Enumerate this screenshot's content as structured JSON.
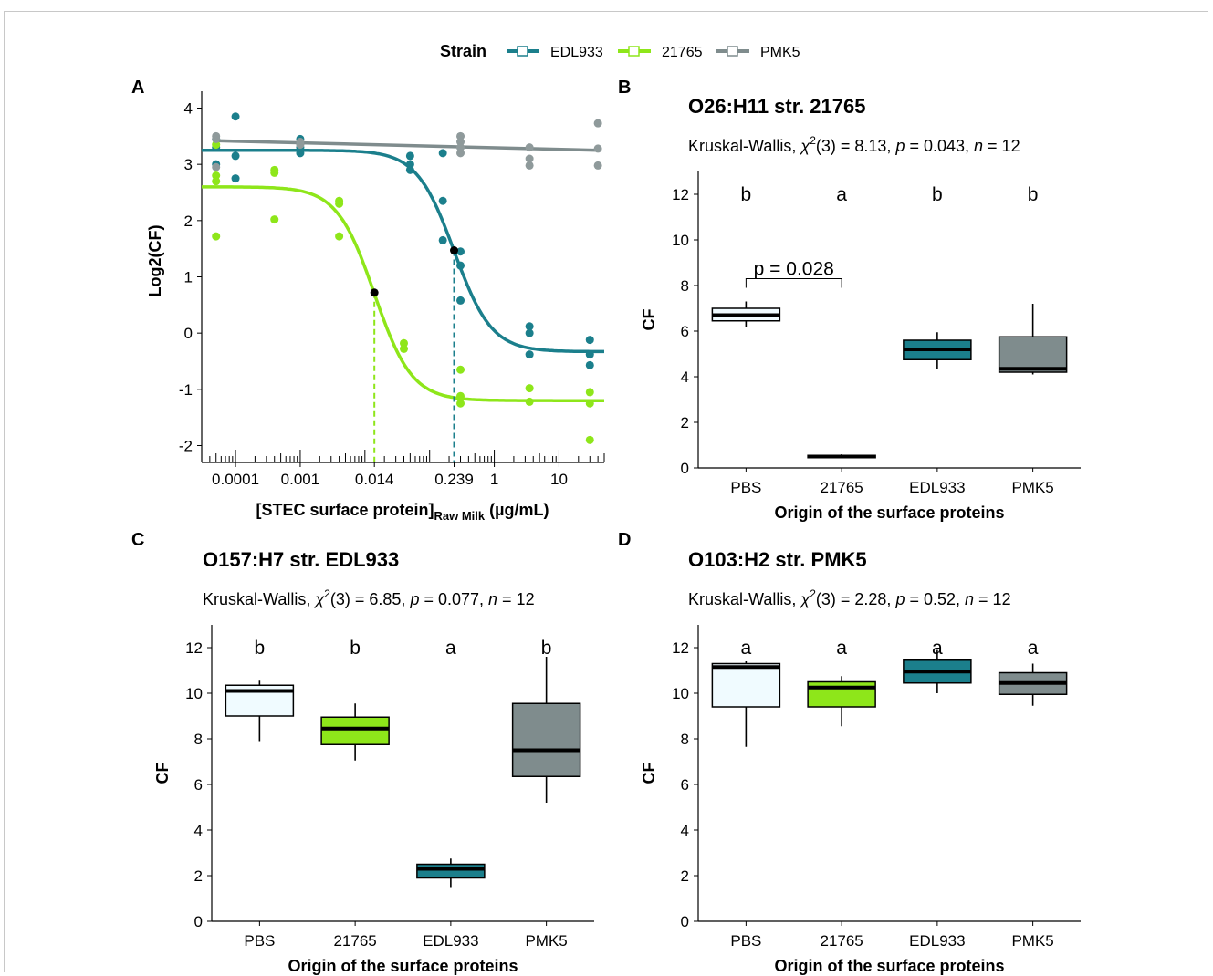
{
  "legend": {
    "title": "Strain",
    "items": [
      {
        "label": "EDL933",
        "color": "#1b7f8c"
      },
      {
        "label": "21765",
        "color": "#8ee61a"
      },
      {
        "label": "PMK5",
        "color": "#7f8c8d"
      }
    ]
  },
  "colors": {
    "PBS_fill": "#f0fbff",
    "21765": "#8ee61a",
    "EDL933": "#1b7f8c",
    "PMK5": "#7f8c8d",
    "PMK5_points": "#8f9a9b",
    "marker": "#000000"
  },
  "panels": {
    "A": {
      "label": "A"
    },
    "B": {
      "label": "B",
      "title": "O26:H11 str. 21765",
      "test": "Kruskal-Wallis,",
      "chi_label": "χ",
      "chi_sup": "2",
      "df": "(3) = 8.13, ",
      "p_label": "p",
      "p_value": " = 0.043, ",
      "n_label": "n",
      "n_value": " = 12",
      "bracket": "p = 0.028"
    },
    "C": {
      "label": "C",
      "title": "O157:H7 str. EDL933",
      "test": "Kruskal-Wallis,",
      "chi_label": "χ",
      "chi_sup": "2",
      "df": "(3) = 6.85, ",
      "p_label": "p",
      "p_value": " = 0.077, ",
      "n_label": "n",
      "n_value": " = 12"
    },
    "D": {
      "label": "D",
      "title": "O103:H2 str. PMK5",
      "test": "Kruskal-Wallis,",
      "chi_label": "χ",
      "chi_sup": "2",
      "df": "(3) = 2.28, ",
      "p_label": "p",
      "p_value": " = 0.52, ",
      "n_label": "n",
      "n_value": " = 12"
    }
  },
  "chart_data": [
    {
      "panel": "A",
      "type": "scatter",
      "xscale": "log",
      "xlabel_main": "[STEC surface protein]",
      "xlabel_sub": "Raw Milk",
      "xlabel_unit": " (µg/mL)",
      "ylabel": "Log2(CF)",
      "xlim": [
        3e-05,
        50
      ],
      "ylim": [
        -2.3,
        4.3
      ],
      "xticks": [
        {
          "v": 0.0001,
          "label": "0.0001"
        },
        {
          "v": 0.001,
          "label": "0.001"
        },
        {
          "v": 0.014,
          "label": "0.014"
        },
        {
          "v": 0.239,
          "label": "0.239"
        },
        {
          "v": 1,
          "label": "1"
        },
        {
          "v": 10,
          "label": "10"
        }
      ],
      "yticks": [
        -2,
        -1,
        0,
        1,
        2,
        3,
        4
      ],
      "series": [
        {
          "name": "EDL933",
          "fit": {
            "top": 3.25,
            "bottom": -0.33,
            "ec50": 0.239,
            "hill": 1.5
          },
          "points": [
            [
              5e-05,
              3.45
            ],
            [
              5e-05,
              3.3
            ],
            [
              5e-05,
              3.0
            ],
            [
              0.0001,
              3.85
            ],
            [
              0.0001,
              3.15
            ],
            [
              0.0001,
              2.75
            ],
            [
              0.001,
              3.45
            ],
            [
              0.001,
              3.2
            ],
            [
              0.001,
              3.3
            ],
            [
              0.05,
              3.15
            ],
            [
              0.05,
              3.0
            ],
            [
              0.05,
              2.9
            ],
            [
              0.16,
              3.2
            ],
            [
              0.16,
              2.35
            ],
            [
              0.16,
              1.65
            ],
            [
              0.3,
              1.45
            ],
            [
              0.3,
              1.2
            ],
            [
              0.3,
              0.58
            ],
            [
              3.5,
              0.12
            ],
            [
              3.5,
              0.0
            ],
            [
              3.5,
              -0.38
            ],
            [
              30,
              -0.12
            ],
            [
              30,
              -0.38
            ],
            [
              30,
              -0.57
            ]
          ],
          "marker": {
            "x": 0.239,
            "y": 1.47
          }
        },
        {
          "name": "21765",
          "fit": {
            "top": 2.6,
            "bottom": -1.2,
            "ec50": 0.014,
            "hill": 1.5
          },
          "points": [
            [
              5e-05,
              3.35
            ],
            [
              5e-05,
              2.8
            ],
            [
              5e-05,
              2.7
            ],
            [
              5e-05,
              1.72
            ],
            [
              0.0004,
              2.9
            ],
            [
              0.0004,
              2.85
            ],
            [
              0.0004,
              2.02
            ],
            [
              0.004,
              2.35
            ],
            [
              0.004,
              2.3
            ],
            [
              0.004,
              1.72
            ],
            [
              0.04,
              -0.18
            ],
            [
              0.04,
              -0.28
            ],
            [
              0.3,
              -0.65
            ],
            [
              0.3,
              -1.12
            ],
            [
              0.3,
              -1.25
            ],
            [
              3.5,
              -0.98
            ],
            [
              3.5,
              -1.22
            ],
            [
              30,
              -1.05
            ],
            [
              30,
              -1.25
            ],
            [
              30,
              -1.9
            ]
          ],
          "marker": {
            "x": 0.014,
            "y": 0.72
          }
        },
        {
          "name": "PMK5",
          "line": [
            [
              5e-05,
              3.42
            ],
            [
              40,
              3.25
            ]
          ],
          "points": [
            [
              5e-05,
              3.5
            ],
            [
              5e-05,
              3.45
            ],
            [
              5e-05,
              2.95
            ],
            [
              0.001,
              3.4
            ],
            [
              0.001,
              3.35
            ],
            [
              0.3,
              3.5
            ],
            [
              0.3,
              3.4
            ],
            [
              0.3,
              3.3
            ],
            [
              0.3,
              3.2
            ],
            [
              3.5,
              3.3
            ],
            [
              3.5,
              3.1
            ],
            [
              3.5,
              2.98
            ],
            [
              40,
              3.73
            ],
            [
              40,
              3.28
            ],
            [
              40,
              2.98
            ]
          ]
        }
      ]
    },
    {
      "panel": "B",
      "type": "boxplot",
      "xlabel": "Origin of the surface proteins",
      "ylabel": "CF",
      "ylim": [
        0,
        13
      ],
      "yticks": [
        0,
        2,
        4,
        6,
        8,
        10,
        12
      ],
      "categories": [
        "PBS",
        "21765",
        "EDL933",
        "PMK5"
      ],
      "letters": [
        "b",
        "a",
        "b",
        "b"
      ],
      "boxes": [
        {
          "min": 6.2,
          "q1": 6.45,
          "median": 6.7,
          "q3": 7.0,
          "max": 7.3
        },
        {
          "min": 0.42,
          "q1": 0.45,
          "median": 0.5,
          "q3": 0.55,
          "max": 0.6
        },
        {
          "min": 4.35,
          "q1": 4.75,
          "median": 5.2,
          "q3": 5.6,
          "max": 5.95
        },
        {
          "min": 4.1,
          "q1": 4.2,
          "median": 4.35,
          "q3": 5.75,
          "max": 7.2
        }
      ]
    },
    {
      "panel": "C",
      "type": "boxplot",
      "xlabel": "Origin of the surface proteins",
      "ylabel": "CF",
      "ylim": [
        0,
        13
      ],
      "yticks": [
        0,
        2,
        4,
        6,
        8,
        10,
        12
      ],
      "categories": [
        "PBS",
        "21765",
        "EDL933",
        "PMK5"
      ],
      "letters": [
        "b",
        "b",
        "a",
        "b"
      ],
      "boxes": [
        {
          "min": 7.9,
          "q1": 9.0,
          "median": 10.1,
          "q3": 10.35,
          "max": 10.55
        },
        {
          "min": 7.05,
          "q1": 7.75,
          "median": 8.45,
          "q3": 8.95,
          "max": 9.55
        },
        {
          "min": 1.5,
          "q1": 1.9,
          "median": 2.3,
          "q3": 2.5,
          "max": 2.75
        },
        {
          "min": 5.2,
          "q1": 6.35,
          "median": 7.5,
          "q3": 9.55,
          "max": 11.6
        }
      ]
    },
    {
      "panel": "D",
      "type": "boxplot",
      "xlabel": "Origin of the surface proteins",
      "ylabel": "CF",
      "ylim": [
        0,
        13
      ],
      "yticks": [
        0,
        2,
        4,
        6,
        8,
        10,
        12
      ],
      "categories": [
        "PBS",
        "21765",
        "EDL933",
        "PMK5"
      ],
      "letters": [
        "a",
        "a",
        "a",
        "a"
      ],
      "boxes": [
        {
          "min": 7.65,
          "q1": 9.4,
          "median": 11.15,
          "q3": 11.3,
          "max": 11.4
        },
        {
          "min": 8.55,
          "q1": 9.4,
          "median": 10.25,
          "q3": 10.5,
          "max": 10.75
        },
        {
          "min": 10.0,
          "q1": 10.45,
          "median": 10.95,
          "q3": 11.45,
          "max": 11.9
        },
        {
          "min": 9.45,
          "q1": 9.95,
          "median": 10.45,
          "q3": 10.9,
          "max": 11.3
        }
      ]
    }
  ]
}
